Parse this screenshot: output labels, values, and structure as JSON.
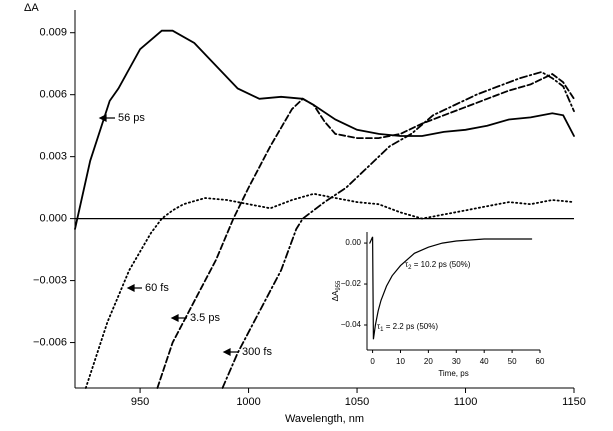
{
  "chart_data": [
    {
      "type": "line",
      "ylabel": "ΔA",
      "xlabel": "Wavelength, nm",
      "xlim": [
        920,
        1150
      ],
      "xticks": [
        950,
        1000,
        1050,
        1100,
        1150
      ],
      "ylim": [
        -0.0082,
        0.0101
      ],
      "yticks": [
        {
          "value": -0.006,
          "label": "−0.006"
        },
        {
          "value": -0.003,
          "label": "−0.003"
        },
        {
          "value": 0,
          "label": "0.000"
        },
        0.003,
        0.006,
        0.009
      ],
      "zero_line": true,
      "series": [
        {
          "name": "56 ps",
          "color": "#000000",
          "dash": "solid",
          "x": [
            920,
            927,
            936,
            940,
            950,
            960,
            965,
            975,
            985,
            995,
            1005,
            1015,
            1025,
            1030,
            1040,
            1050,
            1060,
            1070,
            1080,
            1090,
            1100,
            1110,
            1120,
            1130,
            1140,
            1145,
            1150
          ],
          "values": [
            -0.0005,
            0.0028,
            0.0057,
            0.0063,
            0.0082,
            0.0091,
            0.0091,
            0.0085,
            0.0074,
            0.0063,
            0.0058,
            0.0059,
            0.0058,
            0.0055,
            0.0048,
            0.0043,
            0.0041,
            0.004,
            0.004,
            0.0042,
            0.0043,
            0.0045,
            0.0048,
            0.0049,
            0.0051,
            0.005,
            0.004
          ]
        },
        {
          "name": "60 fs",
          "color": "#000000",
          "dash": "dotted",
          "x": [
            925,
            935,
            945,
            955,
            960,
            965,
            970,
            980,
            990,
            1000,
            1010,
            1020,
            1030,
            1040,
            1050,
            1060,
            1070,
            1080,
            1090,
            1100,
            1110,
            1120,
            1130,
            1140,
            1150
          ],
          "values": [
            -0.0082,
            -0.005,
            -0.0025,
            -0.0007,
            0,
            0.0004,
            0.0007,
            0.001,
            0.0009,
            0.0007,
            0.0005,
            0.0009,
            0.0012,
            0.001,
            0.0008,
            0.0007,
            0.0003,
            0,
            0.0002,
            0.0004,
            0.0006,
            0.0008,
            0.0007,
            0.0009,
            0.0008
          ]
        },
        {
          "name": "3.5 ps",
          "color": "#000000",
          "dash": "dashed",
          "x": [
            958,
            965,
            975,
            985,
            993,
            1000,
            1010,
            1020,
            1025,
            1030,
            1035,
            1040,
            1050,
            1060,
            1070,
            1080,
            1090,
            1100,
            1110,
            1120,
            1130,
            1140,
            1145,
            1150
          ],
          "values": [
            -0.0082,
            -0.006,
            -0.004,
            -0.002,
            0,
            0.0015,
            0.0035,
            0.0053,
            0.0058,
            0.0055,
            0.0047,
            0.0041,
            0.0039,
            0.0039,
            0.0041,
            0.0046,
            0.005,
            0.0054,
            0.0058,
            0.0062,
            0.0065,
            0.007,
            0.0066,
            0.0058
          ]
        },
        {
          "name": "300 fs",
          "color": "#000000",
          "dash": "dashdot",
          "x": [
            988,
            995,
            1005,
            1015,
            1022,
            1025,
            1035,
            1045,
            1055,
            1065,
            1075,
            1085,
            1095,
            1105,
            1115,
            1125,
            1135,
            1140,
            1145,
            1150
          ],
          "values": [
            -0.0082,
            -0.0065,
            -0.0045,
            -0.0025,
            -0.0005,
            0,
            0.0008,
            0.0015,
            0.0025,
            0.0035,
            0.0041,
            0.005,
            0.0055,
            0.006,
            0.0064,
            0.0068,
            0.0071,
            0.0068,
            0.0064,
            0.0052
          ]
        }
      ]
    },
    {
      "type": "line",
      "ylabel": "ΔA",
      "ylabel_subscript": "955",
      "xlabel": "Time, ps",
      "xlim": [
        -2,
        60
      ],
      "xticks": [
        0,
        10,
        20,
        30,
        40,
        50,
        60
      ],
      "ylim": [
        -0.0522,
        0.0054
      ],
      "yticks": [
        {
          "value": -0.04,
          "label": "−0.04"
        },
        {
          "value": -0.02,
          "label": "−0.02"
        },
        {
          "value": 0,
          "label": "0.00"
        }
      ],
      "annotations": [
        {
          "symbol": "τ",
          "subscript": "2",
          "text": " = 10.2 ps (50%)"
        },
        {
          "symbol": "τ",
          "subscript": "1",
          "text": " = 2.2 ps (50%)"
        }
      ],
      "series": [
        {
          "color": "#000000",
          "dash": "solid",
          "x": [
            -1,
            0,
            0.3,
            1,
            2,
            3,
            5,
            7,
            10,
            15,
            20,
            25,
            30,
            40,
            50,
            57
          ],
          "values": [
            0,
            0.003,
            -0.047,
            -0.04,
            -0.033,
            -0.028,
            -0.021,
            -0.016,
            -0.011,
            -0.005,
            -0.002,
            0,
            0.001,
            0.002,
            0.002,
            0.002
          ]
        }
      ]
    }
  ]
}
